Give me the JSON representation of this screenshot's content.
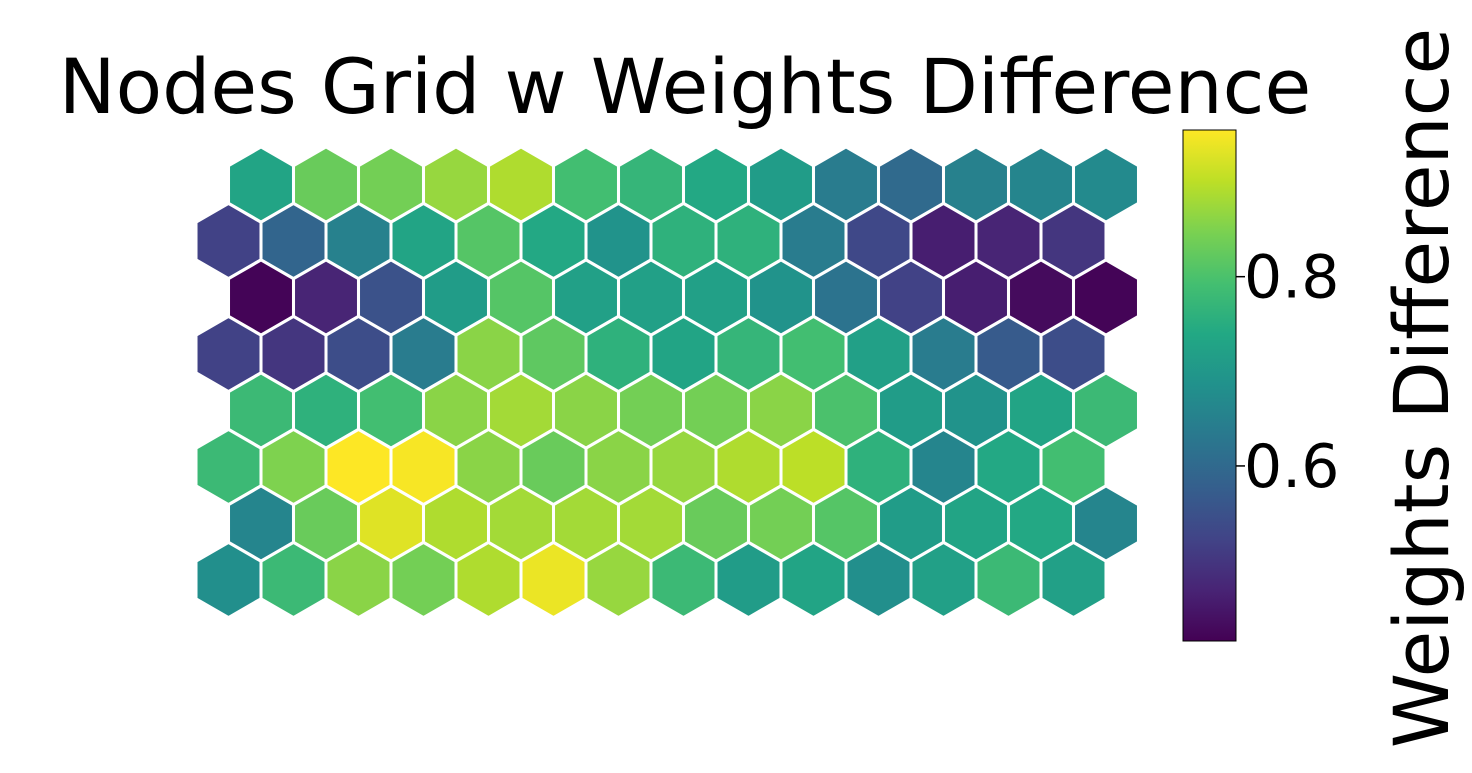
{
  "chart_data": {
    "type": "heatmap",
    "layout": "hexagonal",
    "title": "Nodes Grid w Weights Difference",
    "colorbar": {
      "label": "Weights Difference",
      "colormap": "viridis",
      "vmin": 0.415,
      "vmax": 0.955,
      "ticks": [
        0.6,
        0.8
      ],
      "tick_labels": [
        "0.6",
        "0.8"
      ]
    },
    "hex_edge_color": "#ffffff",
    "rows": [
      [
        0.73,
        0.83,
        0.84,
        0.87,
        0.89,
        0.79,
        0.77,
        0.74,
        0.71,
        0.64,
        0.6,
        0.65,
        0.66,
        0.67
      ],
      [
        0.52,
        0.59,
        0.65,
        0.73,
        0.81,
        0.74,
        0.69,
        0.76,
        0.76,
        0.64,
        0.53,
        0.46,
        0.47,
        0.5
      ],
      [
        0.42,
        0.47,
        0.55,
        0.71,
        0.81,
        0.72,
        0.72,
        0.72,
        0.69,
        0.62,
        0.52,
        0.46,
        0.43,
        0.42
      ],
      [
        0.52,
        0.5,
        0.54,
        0.64,
        0.86,
        0.82,
        0.76,
        0.73,
        0.77,
        0.79,
        0.72,
        0.64,
        0.57,
        0.54
      ],
      [
        0.78,
        0.76,
        0.79,
        0.86,
        0.88,
        0.86,
        0.84,
        0.84,
        0.86,
        0.8,
        0.71,
        0.69,
        0.73,
        0.78
      ],
      [
        0.78,
        0.85,
        0.96,
        0.95,
        0.86,
        0.83,
        0.86,
        0.87,
        0.89,
        0.9,
        0.76,
        0.66,
        0.74,
        0.79
      ],
      [
        0.66,
        0.83,
        0.93,
        0.89,
        0.88,
        0.88,
        0.88,
        0.83,
        0.84,
        0.81,
        0.71,
        0.73,
        0.74,
        0.66
      ],
      [
        0.68,
        0.78,
        0.86,
        0.84,
        0.89,
        0.94,
        0.87,
        0.78,
        0.71,
        0.73,
        0.68,
        0.72,
        0.78,
        0.72
      ]
    ]
  }
}
